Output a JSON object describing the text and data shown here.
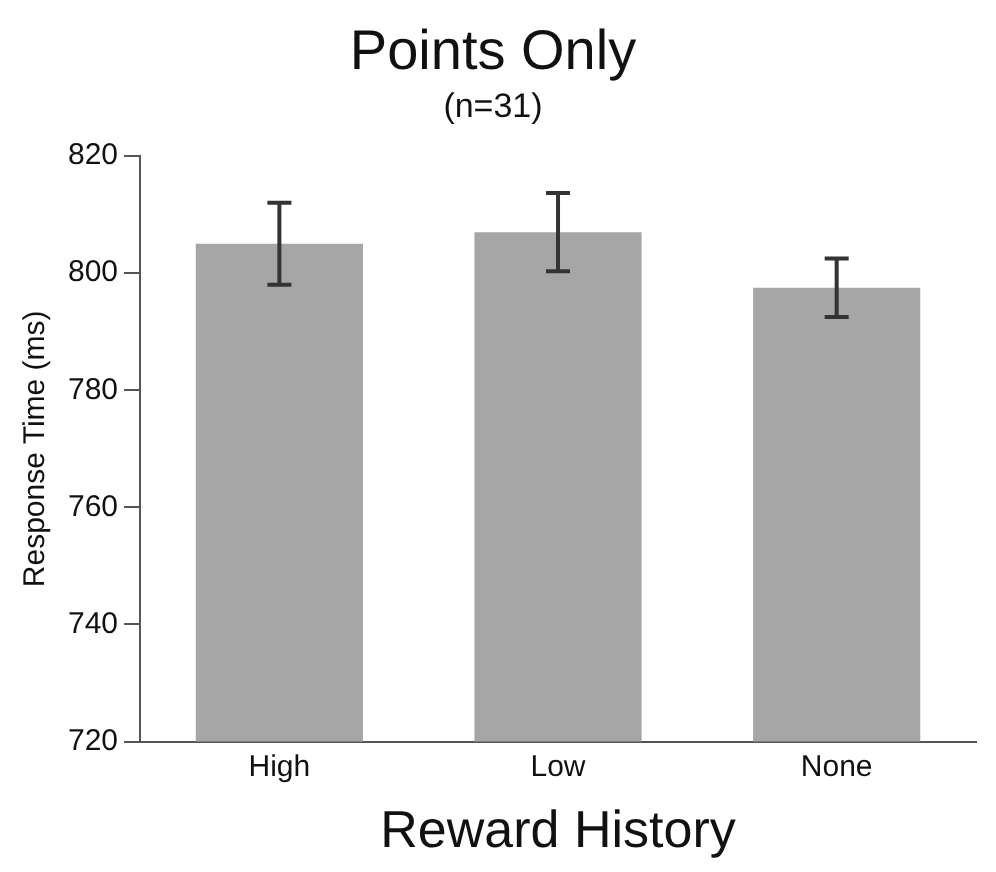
{
  "chart_data": {
    "type": "bar",
    "title": "Points Only",
    "subtitle": "(n=31)",
    "xlabel": "Reward History",
    "ylabel": "Response Time (ms)",
    "categories": [
      "High",
      "Low",
      "None"
    ],
    "values": [
      805,
      807,
      797.5
    ],
    "errors": [
      7,
      6.7,
      5
    ],
    "color": "#a6a6a6",
    "ylim": [
      720,
      820
    ],
    "yticks": [
      720,
      740,
      760,
      780,
      800,
      820
    ],
    "grid": false,
    "legend": false
  }
}
